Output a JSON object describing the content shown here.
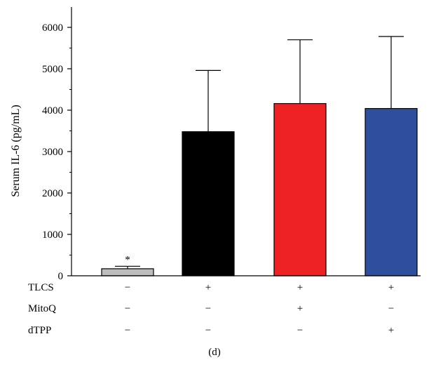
{
  "chart_data": {
    "type": "bar",
    "ylabel": "Serum IL-6 (pg/mL)",
    "xlabel": "",
    "ylim": [
      0,
      6500
    ],
    "yticks": [
      0,
      1000,
      2000,
      3000,
      4000,
      5000,
      6000
    ],
    "values": [
      170,
      3480,
      4160,
      4040
    ],
    "errors": [
      60,
      1480,
      1540,
      1740
    ],
    "colors": [
      "#bdbdbd",
      "#000000",
      "#ee2124",
      "#2e4f9e"
    ],
    "annotations": [
      "*",
      "",
      "",
      ""
    ],
    "conditions": [
      {
        "label": "TLCS",
        "values": [
          "−",
          "+",
          "+",
          "+"
        ]
      },
      {
        "label": "MitoQ",
        "values": [
          "−",
          "−",
          "+",
          "−"
        ]
      },
      {
        "label": "dTPP",
        "values": [
          "−",
          "−",
          "−",
          "+"
        ]
      }
    ],
    "grid": false
  },
  "caption": "(d)"
}
